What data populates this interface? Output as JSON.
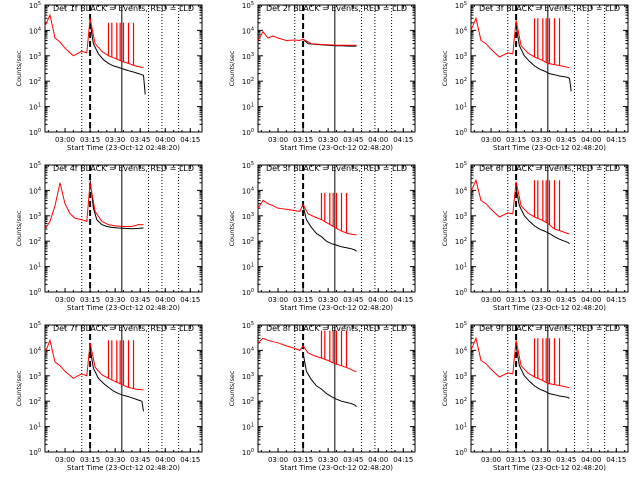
{
  "figure": {
    "colors": {
      "events": "#000000",
      "lld": "#ff0000",
      "axis": "#000000"
    },
    "vertical_lines": {
      "dashed": "03:15",
      "solid_marker": "03:34",
      "dotted": [
        "03:10",
        "03:50",
        "03:58",
        "04:08"
      ]
    }
  },
  "chart_data": [
    {
      "type": "line",
      "title": "Det 1f BLACK = Events, RED = LLD",
      "ylabel": "Counts/sec",
      "xlabel": "Start Time (23-Oct-12 02:48:20)",
      "xticks": [
        "03:00",
        "03:15",
        "03:30",
        "03:45",
        "04:00",
        "04:15"
      ],
      "yticks": [
        "10^0",
        "10^1",
        "10^2",
        "10^3",
        "10^4",
        "10^5"
      ],
      "xlim": [
        "02:48",
        "04:22"
      ],
      "ylim": [
        1,
        100000
      ],
      "log_y": true,
      "grid": false,
      "series": [
        {
          "color": "black",
          "x": [
            "03:15",
            "03:17",
            "03:20",
            "03:23",
            "03:26",
            "03:29",
            "03:32",
            "03:35",
            "03:38",
            "03:41",
            "03:44",
            "03:46",
            "03:47",
            "03:48"
          ],
          "y": [
            20000,
            3000,
            1200,
            700,
            500,
            400,
            350,
            300,
            260,
            230,
            200,
            180,
            170,
            30
          ]
        },
        {
          "color": "red",
          "x": [
            "02:48",
            "02:51",
            "02:54",
            "02:57",
            "03:00",
            "03:05",
            "03:10",
            "03:13",
            "03:15",
            "03:18",
            "03:22",
            "03:26",
            "03:30",
            "03:34",
            "03:38",
            "03:42",
            "03:46",
            "03:47"
          ],
          "y": [
            15000,
            40000,
            5000,
            3500,
            2000,
            1000,
            1500,
            1300,
            30000,
            3000,
            1500,
            1000,
            800,
            600,
            500,
            400,
            350,
            350
          ],
          "spikes": [
            "03:26",
            "03:28",
            "03:31",
            "03:33",
            "03:35",
            "03:38",
            "03:41"
          ],
          "spike_peak": 20000
        }
      ]
    },
    {
      "type": "line",
      "title": "Det 2f BLACK = Events, RED = LLD",
      "ylabel": "Counts/sec",
      "xlabel": "Start Time (23-Oct-12 02:48:20)",
      "xticks": [
        "03:00",
        "03:15",
        "03:30",
        "03:45",
        "04:00",
        "04:15"
      ],
      "yticks": [
        "10^0",
        "10^1",
        "10^2",
        "10^3",
        "10^4",
        "10^5"
      ],
      "xlim": [
        "02:48",
        "04:22"
      ],
      "ylim": [
        1,
        100000
      ],
      "log_y": true,
      "grid": false,
      "series": [
        {
          "color": "black",
          "x": [
            "03:15",
            "03:18",
            "03:22",
            "03:26",
            "03:30",
            "03:34",
            "03:38",
            "03:42",
            "03:46",
            "03:47"
          ],
          "y": [
            4500,
            3000,
            2800,
            2700,
            2600,
            2500,
            2500,
            2400,
            2400,
            2400
          ]
        },
        {
          "color": "red",
          "x": [
            "02:48",
            "02:51",
            "02:54",
            "02:57",
            "03:00",
            "03:05",
            "03:10",
            "03:13",
            "03:15",
            "03:20",
            "03:25",
            "03:30",
            "03:35",
            "03:40",
            "03:47"
          ],
          "y": [
            4000,
            9000,
            5000,
            6000,
            5000,
            4000,
            4200,
            4000,
            4500,
            3000,
            2800,
            2700,
            2600,
            2600,
            2600
          ],
          "spikes": [],
          "spike_peak": 0
        }
      ]
    },
    {
      "type": "line",
      "title": "Det 3f BLACK = Events, RED = LLD",
      "ylabel": "Counts/sec",
      "xlabel": "Start Time (23-Oct-12 02:48:20)",
      "xticks": [
        "03:00",
        "03:15",
        "03:30",
        "03:45",
        "04:00",
        "04:15"
      ],
      "yticks": [
        "10^0",
        "10^1",
        "10^2",
        "10^3",
        "10^4",
        "10^5"
      ],
      "xlim": [
        "02:48",
        "04:22"
      ],
      "ylim": [
        1,
        100000
      ],
      "log_y": true,
      "grid": false,
      "series": [
        {
          "color": "black",
          "x": [
            "03:15",
            "03:17",
            "03:20",
            "03:23",
            "03:26",
            "03:29",
            "03:32",
            "03:35",
            "03:38",
            "03:41",
            "03:44",
            "03:46",
            "03:47",
            "03:48"
          ],
          "y": [
            15000,
            2500,
            1000,
            600,
            400,
            300,
            250,
            200,
            180,
            160,
            150,
            140,
            130,
            40
          ]
        },
        {
          "color": "red",
          "x": [
            "02:48",
            "02:51",
            "02:54",
            "02:57",
            "03:00",
            "03:05",
            "03:10",
            "03:13",
            "03:15",
            "03:18",
            "03:22",
            "03:26",
            "03:30",
            "03:34",
            "03:38",
            "03:42",
            "03:46",
            "03:47"
          ],
          "y": [
            10000,
            30000,
            4000,
            3000,
            1800,
            900,
            1300,
            1200,
            25000,
            2500,
            1300,
            900,
            700,
            500,
            450,
            400,
            350,
            350
          ],
          "spikes": [
            "03:26",
            "03:28",
            "03:31",
            "03:33",
            "03:35",
            "03:38",
            "03:41"
          ],
          "spike_peak": 30000
        }
      ]
    },
    {
      "type": "line",
      "title": "Det 4f BLACK = Events, RED = LLD",
      "ylabel": "Counts/sec",
      "xlabel": "Start Time (23-Oct-12 02:48:20)",
      "xticks": [
        "03:00",
        "03:15",
        "03:30",
        "03:45",
        "04:00",
        "04:15"
      ],
      "yticks": [
        "10^0",
        "10^1",
        "10^2",
        "10^3",
        "10^4",
        "10^5"
      ],
      "xlim": [
        "02:48",
        "04:22"
      ],
      "ylim": [
        1,
        100000
      ],
      "log_y": true,
      "grid": false,
      "series": [
        {
          "color": "black",
          "x": [
            "03:15",
            "03:17",
            "03:19",
            "03:22",
            "03:25",
            "03:28",
            "03:32",
            "03:36",
            "03:40",
            "03:44",
            "03:47"
          ],
          "y": [
            25000,
            2000,
            700,
            450,
            380,
            350,
            330,
            320,
            310,
            320,
            330
          ]
        },
        {
          "color": "red",
          "x": [
            "02:48",
            "02:51",
            "02:54",
            "02:57",
            "03:00",
            "03:03",
            "03:06",
            "03:10",
            "03:13",
            "03:15",
            "03:18",
            "03:22",
            "03:26",
            "03:30",
            "03:35",
            "03:40",
            "03:44",
            "03:47"
          ],
          "y": [
            300,
            600,
            2500,
            20000,
            3000,
            1200,
            800,
            700,
            600,
            20000,
            1500,
            600,
            450,
            400,
            380,
            380,
            450,
            450
          ],
          "spikes": [],
          "spike_peak": 0
        }
      ]
    },
    {
      "type": "line",
      "title": "Det 5f BLACK = Events, RED = LLD",
      "ylabel": "Counts/sec",
      "xlabel": "Start Time (23-Oct-12 02:48:20)",
      "xticks": [
        "03:00",
        "03:15",
        "03:30",
        "03:45",
        "04:00",
        "04:15"
      ],
      "yticks": [
        "10^0",
        "10^1",
        "10^2",
        "10^3",
        "10^4",
        "10^5"
      ],
      "xlim": [
        "02:48",
        "04:22"
      ],
      "ylim": [
        1,
        100000
      ],
      "log_y": true,
      "grid": false,
      "series": [
        {
          "color": "black",
          "x": [
            "03:15",
            "03:17",
            "03:20",
            "03:23",
            "03:26",
            "03:29",
            "03:32",
            "03:35",
            "03:38",
            "03:41",
            "03:44",
            "03:46",
            "03:47"
          ],
          "y": [
            2500,
            700,
            350,
            200,
            150,
            100,
            80,
            70,
            60,
            55,
            50,
            45,
            40
          ]
        },
        {
          "color": "red",
          "x": [
            "02:48",
            "02:51",
            "02:54",
            "02:57",
            "03:00",
            "03:05",
            "03:10",
            "03:13",
            "03:15",
            "03:18",
            "03:22",
            "03:26",
            "03:30",
            "03:34",
            "03:38",
            "03:42",
            "03:46",
            "03:47"
          ],
          "y": [
            2000,
            4000,
            3000,
            2500,
            2000,
            1800,
            1600,
            1500,
            2800,
            1200,
            900,
            700,
            500,
            350,
            250,
            200,
            180,
            180
          ],
          "spikes": [
            "03:26",
            "03:28",
            "03:31",
            "03:33",
            "03:35",
            "03:38",
            "03:41"
          ],
          "spike_peak": 8000
        }
      ]
    },
    {
      "type": "line",
      "title": "Det 6f BLACK = Events, RED = LLD",
      "ylabel": "Counts/sec",
      "xlabel": "Start Time (23-Oct-12 02:48:20)",
      "xticks": [
        "03:00",
        "03:15",
        "03:30",
        "03:45",
        "04:00",
        "04:15"
      ],
      "yticks": [
        "10^0",
        "10^1",
        "10^2",
        "10^3",
        "10^4",
        "10^5"
      ],
      "xlim": [
        "02:48",
        "04:22"
      ],
      "ylim": [
        1,
        100000
      ],
      "log_y": true,
      "grid": false,
      "series": [
        {
          "color": "black",
          "x": [
            "03:15",
            "03:17",
            "03:20",
            "03:23",
            "03:26",
            "03:29",
            "03:32",
            "03:35",
            "03:38",
            "03:41",
            "03:44",
            "03:46",
            "03:47"
          ],
          "y": [
            12000,
            2500,
            1000,
            600,
            400,
            300,
            250,
            200,
            150,
            120,
            100,
            90,
            80
          ]
        },
        {
          "color": "red",
          "x": [
            "02:48",
            "02:51",
            "02:54",
            "02:57",
            "03:00",
            "03:05",
            "03:10",
            "03:13",
            "03:15",
            "03:18",
            "03:22",
            "03:26",
            "03:30",
            "03:34",
            "03:38",
            "03:42",
            "03:46",
            "03:47"
          ],
          "y": [
            9000,
            25000,
            4000,
            3000,
            1800,
            900,
            1300,
            1200,
            22000,
            2500,
            1300,
            900,
            700,
            500,
            300,
            250,
            200,
            200
          ],
          "spikes": [
            "03:26",
            "03:28",
            "03:31",
            "03:33",
            "03:35",
            "03:38",
            "03:41"
          ],
          "spike_peak": 25000
        }
      ]
    },
    {
      "type": "line",
      "title": "Det 7f BLACK = Events, RED = LLD",
      "ylabel": "Counts/sec",
      "xlabel": "Start Time (23-Oct-12 02:48:20)",
      "xticks": [
        "03:00",
        "03:15",
        "03:30",
        "03:45",
        "04:00",
        "04:15"
      ],
      "yticks": [
        "10^0",
        "10^1",
        "10^2",
        "10^3",
        "10^4",
        "10^5"
      ],
      "xlim": [
        "02:48",
        "04:22"
      ],
      "ylim": [
        1,
        100000
      ],
      "log_y": true,
      "grid": false,
      "series": [
        {
          "color": "black",
          "x": [
            "03:15",
            "03:17",
            "03:20",
            "03:23",
            "03:26",
            "03:29",
            "03:32",
            "03:35",
            "03:38",
            "03:41",
            "03:44",
            "03:46",
            "03:47"
          ],
          "y": [
            12000,
            2000,
            800,
            500,
            350,
            250,
            200,
            170,
            150,
            130,
            110,
            100,
            40
          ]
        },
        {
          "color": "red",
          "x": [
            "02:48",
            "02:51",
            "02:54",
            "02:57",
            "03:00",
            "03:05",
            "03:10",
            "03:13",
            "03:15",
            "03:18",
            "03:22",
            "03:26",
            "03:30",
            "03:34",
            "03:38",
            "03:42",
            "03:46",
            "03:47"
          ],
          "y": [
            8000,
            25000,
            3500,
            2500,
            1500,
            800,
            1200,
            1000,
            20000,
            2200,
            1100,
            800,
            600,
            450,
            350,
            300,
            280,
            280
          ],
          "spikes": [
            "03:26",
            "03:28",
            "03:31",
            "03:33",
            "03:35",
            "03:38",
            "03:41"
          ],
          "spike_peak": 25000
        }
      ]
    },
    {
      "type": "line",
      "title": "Det 8f BLACK = Events, RED = LLD",
      "ylabel": "Counts/sec",
      "xlabel": "Start Time (23-Oct-12 02:48:20)",
      "xticks": [
        "03:00",
        "03:15",
        "03:30",
        "03:45",
        "04:00",
        "04:15"
      ],
      "yticks": [
        "10^0",
        "10^1",
        "10^2",
        "10^3",
        "10^4",
        "10^5"
      ],
      "xlim": [
        "02:48",
        "04:22"
      ],
      "ylim": [
        1,
        100000
      ],
      "log_y": true,
      "grid": false,
      "series": [
        {
          "color": "black",
          "x": [
            "03:15",
            "03:17",
            "03:20",
            "03:23",
            "03:26",
            "03:29",
            "03:32",
            "03:35",
            "03:38",
            "03:41",
            "03:44",
            "03:46",
            "03:47"
          ],
          "y": [
            8000,
            1500,
            700,
            400,
            300,
            200,
            150,
            120,
            100,
            90,
            80,
            70,
            60
          ]
        },
        {
          "color": "red",
          "x": [
            "02:48",
            "02:51",
            "02:54",
            "02:57",
            "03:00",
            "03:05",
            "03:10",
            "03:13",
            "03:15",
            "03:18",
            "03:22",
            "03:26",
            "03:30",
            "03:34",
            "03:38",
            "03:42",
            "03:46",
            "03:47"
          ],
          "y": [
            20000,
            30000,
            25000,
            22000,
            20000,
            15000,
            12000,
            10000,
            15000,
            8000,
            6000,
            5000,
            4000,
            3000,
            2500,
            2000,
            1500,
            1500
          ],
          "spikes": [
            "03:26",
            "03:28",
            "03:31",
            "03:33",
            "03:35",
            "03:38",
            "03:41"
          ],
          "spike_peak": 60000
        }
      ]
    },
    {
      "type": "line",
      "title": "Det 9f BLACK = Events, RED = LLD",
      "ylabel": "Counts/sec",
      "xlabel": "Start Time (23-Oct-12 02:48:20)",
      "xticks": [
        "03:00",
        "03:15",
        "03:30",
        "03:45",
        "04:00",
        "04:15"
      ],
      "yticks": [
        "10^0",
        "10^1",
        "10^2",
        "10^3",
        "10^4",
        "10^5"
      ],
      "xlim": [
        "02:48",
        "04:22"
      ],
      "ylim": [
        1,
        100000
      ],
      "log_y": true,
      "grid": false,
      "series": [
        {
          "color": "black",
          "x": [
            "03:15",
            "03:17",
            "03:20",
            "03:23",
            "03:26",
            "03:29",
            "03:32",
            "03:35",
            "03:38",
            "03:41",
            "03:44",
            "03:46",
            "03:47"
          ],
          "y": [
            15000,
            2500,
            1000,
            600,
            400,
            300,
            250,
            200,
            180,
            160,
            150,
            140,
            130
          ]
        },
        {
          "color": "red",
          "x": [
            "02:48",
            "02:51",
            "02:54",
            "02:57",
            "03:00",
            "03:05",
            "03:10",
            "03:13",
            "03:15",
            "03:18",
            "03:22",
            "03:26",
            "03:30",
            "03:34",
            "03:38",
            "03:42",
            "03:46",
            "03:47"
          ],
          "y": [
            10000,
            30000,
            4000,
            3000,
            1800,
            900,
            1300,
            1200,
            25000,
            2500,
            1300,
            900,
            700,
            500,
            450,
            400,
            350,
            350
          ],
          "spikes": [
            "03:26",
            "03:28",
            "03:31",
            "03:33",
            "03:35",
            "03:38",
            "03:41"
          ],
          "spike_peak": 30000
        }
      ]
    }
  ]
}
